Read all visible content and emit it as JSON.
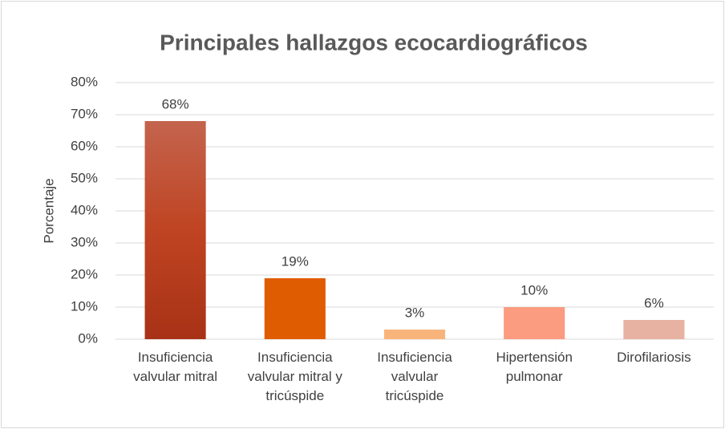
{
  "chart_data": {
    "type": "bar",
    "title": "Principales hallazgos ecocardiográficos",
    "ylabel": "Porcentaje",
    "categories": [
      "Insuficiencia valvular mitral",
      "Insuficiencia valvular mitral y tricúspide",
      "Insuficiencia valvular tricúspide",
      "Hipertensión pulmonar",
      "Dirofilariosis"
    ],
    "values": [
      68,
      19,
      3,
      10,
      6
    ],
    "value_labels": [
      "68%",
      "19%",
      "3%",
      "10%",
      "6%"
    ],
    "colors": [
      "#b8391c",
      "#e05c00",
      "#f9b47c",
      "#fb9b7f",
      "#e8b2a2"
    ],
    "ylim": [
      0,
      80
    ],
    "yticks": [
      {
        "value": 0,
        "label": "0%"
      },
      {
        "value": 10,
        "label": "10%"
      },
      {
        "value": 20,
        "label": "20%"
      },
      {
        "value": 30,
        "label": "30%"
      },
      {
        "value": 40,
        "label": "40%"
      },
      {
        "value": 50,
        "label": "50%"
      },
      {
        "value": 60,
        "label": "60%"
      },
      {
        "value": 70,
        "label": "70%"
      },
      {
        "value": 80,
        "label": "80%"
      }
    ],
    "grid": true
  }
}
